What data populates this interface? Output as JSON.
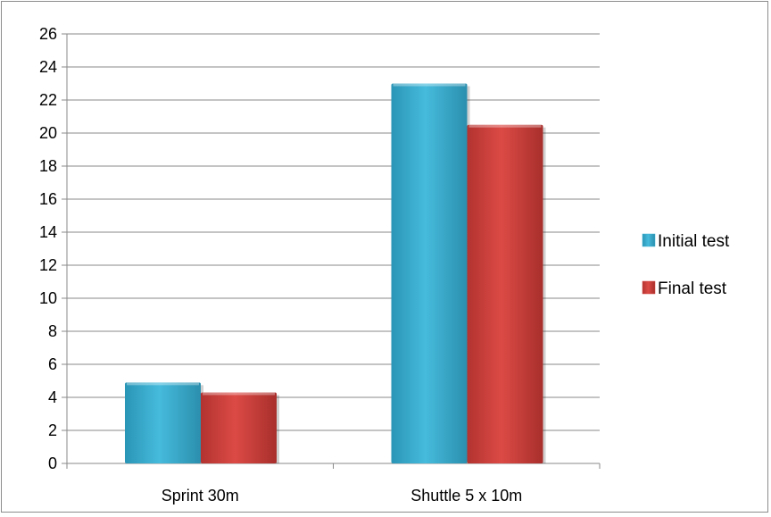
{
  "chart_data": {
    "type": "bar",
    "categories": [
      "Sprint 30m",
      "Shuttle 5 x 10m"
    ],
    "series": [
      {
        "name": "Initial test",
        "values": [
          4.9,
          23.0
        ],
        "color": "#3fb3d4"
      },
      {
        "name": "Final test",
        "values": [
          4.3,
          20.5
        ],
        "color": "#d64541"
      }
    ],
    "title": "",
    "xlabel": "",
    "ylabel": "",
    "ylim": [
      0,
      26
    ],
    "yticks": [
      0,
      2,
      4,
      6,
      8,
      10,
      12,
      14,
      16,
      18,
      20,
      22,
      24,
      26
    ],
    "grid": true,
    "legend_position": "right"
  }
}
